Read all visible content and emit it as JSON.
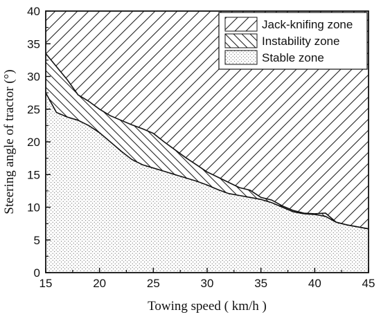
{
  "chart_data": {
    "type": "area",
    "title": "",
    "xlabel": "Towing speed ( km/h )",
    "ylabel": "Steering angle of tractor (°)",
    "xlim": [
      15,
      45
    ],
    "ylim": [
      0,
      40
    ],
    "x_ticks": [
      "15",
      "20",
      "25",
      "30",
      "35",
      "40",
      "45"
    ],
    "y_ticks": [
      "0",
      "5",
      "10",
      "15",
      "20",
      "25",
      "30",
      "35",
      "40"
    ],
    "grid": false,
    "legend_position": "top-right",
    "legend": [
      {
        "label": "Jack-knifing zone",
        "pattern": "diagonal-up-hatch"
      },
      {
        "label": "Instability zone",
        "pattern": "diagonal-down-hatch"
      },
      {
        "label": "Stable zone",
        "pattern": "dots"
      }
    ],
    "boundaries": [
      {
        "name": "Jack-knifing zone",
        "x": [
          15,
          16,
          17,
          18,
          19,
          20,
          21,
          22,
          23,
          24,
          25,
          26,
          27,
          28,
          29,
          30,
          31,
          32,
          33,
          34,
          35,
          36,
          37,
          38,
          39,
          40,
          41,
          42,
          43,
          44,
          45
        ],
        "y": [
          33.5,
          31.5,
          29.5,
          27.2,
          26.2,
          25.0,
          24.0,
          23.3,
          22.6,
          22.0,
          21.3,
          20.0,
          18.8,
          17.6,
          16.5,
          15.4,
          14.6,
          13.8,
          13.0,
          12.6,
          11.5,
          11.1,
          10.2,
          9.5,
          9.1,
          9.0,
          9.1,
          7.7,
          7.3,
          7.0,
          6.7
        ]
      },
      {
        "name": "Instability zone",
        "x": [
          15,
          16,
          17,
          18,
          19,
          20,
          21,
          22,
          23,
          24,
          25,
          26,
          27,
          28,
          29,
          30,
          31,
          32,
          33,
          34,
          35,
          36,
          37,
          38,
          39,
          40,
          41,
          42,
          43,
          44,
          45
        ],
        "y": [
          27.5,
          24.5,
          23.8,
          23.3,
          22.5,
          21.4,
          20.0,
          18.6,
          17.3,
          16.5,
          16.0,
          15.5,
          15.0,
          14.5,
          14.0,
          13.4,
          12.7,
          12.1,
          11.8,
          11.5,
          11.2,
          10.7,
          10.0,
          9.3,
          9.0,
          8.9,
          8.6,
          7.7,
          7.3,
          7.0,
          6.7
        ]
      }
    ]
  }
}
